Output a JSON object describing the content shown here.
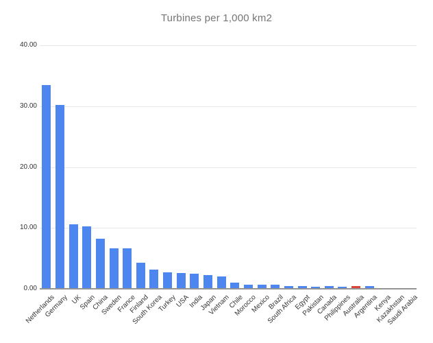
{
  "chart_data": {
    "type": "bar",
    "title": "Turbines per 1,000 km2",
    "xlabel": "",
    "ylabel": "",
    "ylim": [
      0,
      40
    ],
    "y_ticks": [
      "0.00",
      "10.00",
      "20.00",
      "30.00",
      "40.00"
    ],
    "y_tick_values": [
      0,
      10,
      20,
      30,
      40
    ],
    "grid": "horizontal",
    "legend": "none",
    "categories": [
      "Netherlands",
      "Germany",
      "UK",
      "Spain",
      "China",
      "Sweden",
      "France",
      "Finland",
      "South Korea",
      "Turkey",
      "USA",
      "India",
      "Japan",
      "Vietnam",
      "Chile",
      "Morocco",
      "Mexico",
      "Brazil",
      "South Africa",
      "Egypt",
      "Pakistan",
      "Canada",
      "Philippines",
      "Australia",
      "Argentina",
      "Kenya",
      "Kazakhstan",
      "Saudi Arabia"
    ],
    "values": [
      33.5,
      30.2,
      10.6,
      10.2,
      8.2,
      6.7,
      6.7,
      4.3,
      3.2,
      2.7,
      2.6,
      2.5,
      2.3,
      2.0,
      1.0,
      0.7,
      0.7,
      0.7,
      0.5,
      0.5,
      0.35,
      0.4,
      0.35,
      0.4,
      0.4,
      0.12,
      0.12,
      0.15
    ],
    "bar_color": "#4e86f0",
    "highlight": {
      "category": "Australia",
      "color": "#db4437"
    },
    "title_color": "#757575",
    "axis_label_color": "#333333",
    "gridline_color": "#e6e6e6",
    "axis_line_color": "#949494",
    "background_color": "#ffffff"
  }
}
